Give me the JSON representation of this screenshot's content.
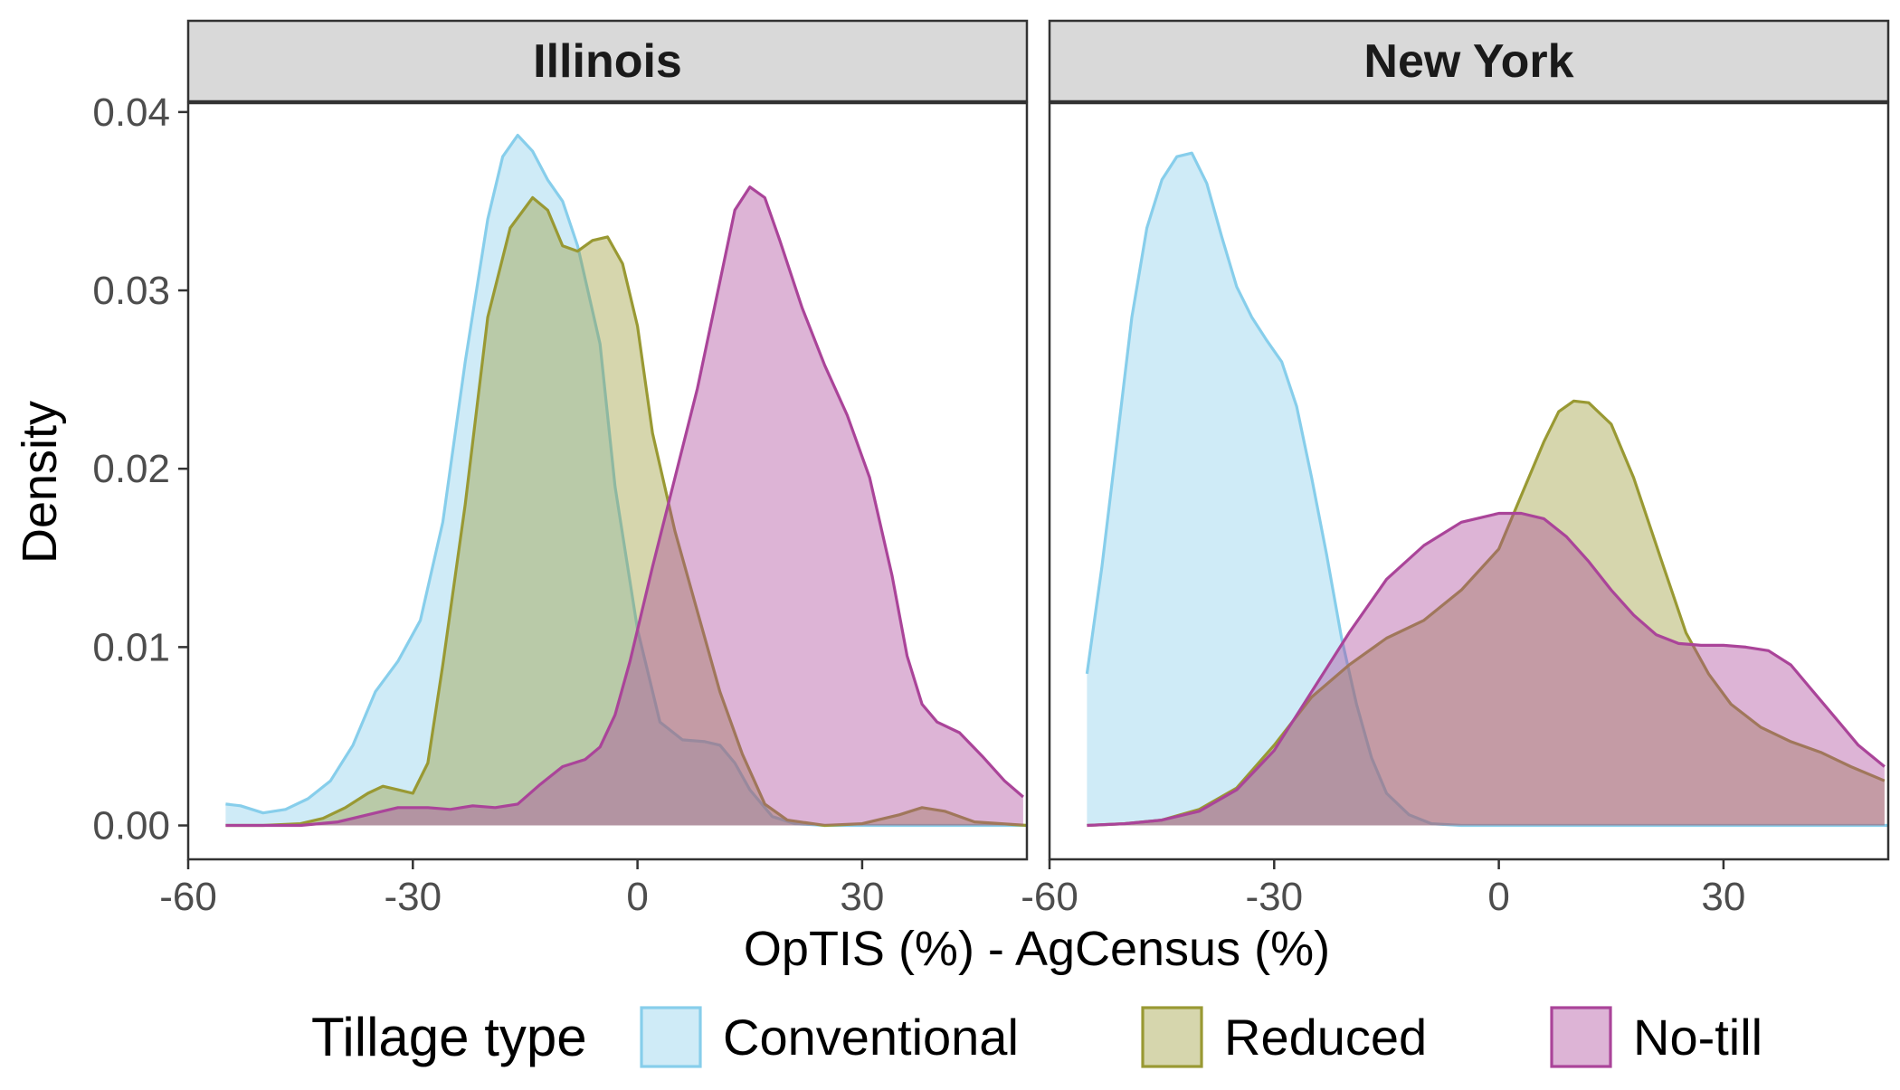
{
  "chart_data": {
    "type": "area",
    "subtype": "density",
    "ylabel": "Density",
    "xlabel": "OpTIS (%) - AgCensus (%)",
    "xlim": [
      -60,
      52
    ],
    "ylim": [
      -0.0019,
      0.0405
    ],
    "x_ticks": [
      -60,
      -30,
      0,
      30
    ],
    "x_tick_labels": [
      "-60",
      "-30",
      "0",
      "30"
    ],
    "y_ticks": [
      0,
      0.01,
      0.02,
      0.03,
      0.04
    ],
    "y_tick_labels": [
      "0.00",
      "0.01",
      "0.02",
      "0.03",
      "0.04"
    ],
    "grid": false,
    "legend": {
      "title": "Tillage type",
      "position": "bottom",
      "items": [
        {
          "label": "Conventional",
          "color": "#87CEEB"
        },
        {
          "label": "Reduced",
          "color": "#999933"
        },
        {
          "label": "No-till",
          "color": "#AA4499"
        }
      ]
    },
    "fill_opacity": 0.4,
    "panels": [
      {
        "title": "Illinois",
        "series": [
          {
            "name": "Conventional",
            "color": "#87CEEB",
            "points": [
              [
                -55,
                0.0012
              ],
              [
                -53,
                0.0011
              ],
              [
                -50,
                0.0007
              ],
              [
                -47,
                0.0009
              ],
              [
                -44,
                0.0015
              ],
              [
                -41,
                0.0025
              ],
              [
                -38,
                0.0045
              ],
              [
                -35,
                0.0075
              ],
              [
                -32,
                0.0092
              ],
              [
                -29,
                0.0115
              ],
              [
                -26,
                0.017
              ],
              [
                -23,
                0.026
              ],
              [
                -20,
                0.034
              ],
              [
                -18,
                0.0375
              ],
              [
                -16,
                0.0387
              ],
              [
                -14,
                0.0378
              ],
              [
                -12,
                0.0362
              ],
              [
                -10,
                0.035
              ],
              [
                -8,
                0.0325
              ],
              [
                -5,
                0.027
              ],
              [
                -3,
                0.019
              ],
              [
                0,
                0.011
              ],
              [
                3,
                0.0058
              ],
              [
                6,
                0.0048
              ],
              [
                9,
                0.0047
              ],
              [
                11,
                0.0045
              ],
              [
                13,
                0.0035
              ],
              [
                15,
                0.002
              ],
              [
                18,
                0.0005
              ],
              [
                21,
                0.0001
              ],
              [
                25,
                0
              ],
              [
                35,
                0
              ],
              [
                45,
                0
              ],
              [
                52,
                0
              ]
            ]
          },
          {
            "name": "Reduced",
            "color": "#999933",
            "points": [
              [
                -55,
                0
              ],
              [
                -50,
                0
              ],
              [
                -45,
                0.0001
              ],
              [
                -42,
                0.0004
              ],
              [
                -39,
                0.001
              ],
              [
                -36,
                0.0018
              ],
              [
                -34,
                0.0022
              ],
              [
                -32,
                0.002
              ],
              [
                -30,
                0.0018
              ],
              [
                -28,
                0.0035
              ],
              [
                -26,
                0.009
              ],
              [
                -23,
                0.018
              ],
              [
                -20,
                0.0285
              ],
              [
                -17,
                0.0335
              ],
              [
                -14,
                0.0352
              ],
              [
                -12,
                0.0345
              ],
              [
                -10,
                0.0325
              ],
              [
                -8,
                0.0322
              ],
              [
                -6,
                0.0328
              ],
              [
                -4,
                0.033
              ],
              [
                -2,
                0.0315
              ],
              [
                0,
                0.028
              ],
              [
                2,
                0.022
              ],
              [
                5,
                0.0165
              ],
              [
                8,
                0.012
              ],
              [
                11,
                0.0075
              ],
              [
                14,
                0.004
              ],
              [
                17,
                0.0012
              ],
              [
                20,
                0.0003
              ],
              [
                25,
                0
              ],
              [
                30,
                0.0001
              ],
              [
                35,
                0.0006
              ],
              [
                38,
                0.001
              ],
              [
                41,
                0.0008
              ],
              [
                45,
                0.0002
              ],
              [
                52,
                0
              ]
            ]
          },
          {
            "name": "No-till",
            "color": "#AA4499",
            "points": [
              [
                -55,
                0
              ],
              [
                -45,
                0
              ],
              [
                -40,
                0.0002
              ],
              [
                -36,
                0.0006
              ],
              [
                -32,
                0.001
              ],
              [
                -28,
                0.001
              ],
              [
                -25,
                0.0009
              ],
              [
                -22,
                0.0011
              ],
              [
                -19,
                0.001
              ],
              [
                -16,
                0.0012
              ],
              [
                -13,
                0.0023
              ],
              [
                -10,
                0.0033
              ],
              [
                -7,
                0.0037
              ],
              [
                -5,
                0.0044
              ],
              [
                -3,
                0.0062
              ],
              [
                -1,
                0.0092
              ],
              [
                2,
                0.0145
              ],
              [
                5,
                0.0195
              ],
              [
                8,
                0.0245
              ],
              [
                11,
                0.0305
              ],
              [
                13,
                0.0345
              ],
              [
                15,
                0.0358
              ],
              [
                17,
                0.0352
              ],
              [
                19,
                0.0328
              ],
              [
                22,
                0.029
              ],
              [
                25,
                0.0258
              ],
              [
                28,
                0.023
              ],
              [
                31,
                0.0195
              ],
              [
                34,
                0.014
              ],
              [
                36,
                0.0095
              ],
              [
                38,
                0.0068
              ],
              [
                40,
                0.0058
              ],
              [
                43,
                0.0052
              ],
              [
                46,
                0.0039
              ],
              [
                49,
                0.0025
              ],
              [
                51.5,
                0.0016
              ]
            ]
          }
        ]
      },
      {
        "title": "New York",
        "series": [
          {
            "name": "Conventional",
            "color": "#87CEEB",
            "points": [
              [
                -55,
                0.0085
              ],
              [
                -53,
                0.0145
              ],
              [
                -51,
                0.0215
              ],
              [
                -49,
                0.0285
              ],
              [
                -47,
                0.0335
              ],
              [
                -45,
                0.0362
              ],
              [
                -43,
                0.0375
              ],
              [
                -41,
                0.0377
              ],
              [
                -39,
                0.036
              ],
              [
                -37,
                0.033
              ],
              [
                -35,
                0.0302
              ],
              [
                -33,
                0.0285
              ],
              [
                -31,
                0.0272
              ],
              [
                -29,
                0.026
              ],
              [
                -27,
                0.0235
              ],
              [
                -25,
                0.0195
              ],
              [
                -23,
                0.0152
              ],
              [
                -21,
                0.0105
              ],
              [
                -19,
                0.0068
              ],
              [
                -17,
                0.0038
              ],
              [
                -15,
                0.0018
              ],
              [
                -12,
                0.0006
              ],
              [
                -9,
                0.0001
              ],
              [
                -5,
                0
              ],
              [
                10,
                0
              ],
              [
                30,
                0
              ],
              [
                52,
                0
              ]
            ]
          },
          {
            "name": "Reduced",
            "color": "#999933",
            "points": [
              [
                -55,
                0
              ],
              [
                -50,
                0.0001
              ],
              [
                -45,
                0.0003
              ],
              [
                -40,
                0.0009
              ],
              [
                -35,
                0.0021
              ],
              [
                -30,
                0.0045
              ],
              [
                -25,
                0.0072
              ],
              [
                -20,
                0.009
              ],
              [
                -15,
                0.0105
              ],
              [
                -10,
                0.0115
              ],
              [
                -5,
                0.0132
              ],
              [
                0,
                0.0155
              ],
              [
                3,
                0.0185
              ],
              [
                6,
                0.0215
              ],
              [
                8,
                0.0232
              ],
              [
                10,
                0.0238
              ],
              [
                12,
                0.0237
              ],
              [
                15,
                0.0225
              ],
              [
                18,
                0.0195
              ],
              [
                22,
                0.0145
              ],
              [
                25,
                0.0108
              ],
              [
                28,
                0.0085
              ],
              [
                31,
                0.0068
              ],
              [
                35,
                0.0055
              ],
              [
                39,
                0.0047
              ],
              [
                43,
                0.0041
              ],
              [
                47,
                0.0033
              ],
              [
                51.5,
                0.0025
              ]
            ]
          },
          {
            "name": "No-till",
            "color": "#AA4499",
            "points": [
              [
                -55,
                0
              ],
              [
                -50,
                0.0001
              ],
              [
                -45,
                0.0003
              ],
              [
                -40,
                0.0008
              ],
              [
                -35,
                0.002
              ],
              [
                -30,
                0.0042
              ],
              [
                -25,
                0.0075
              ],
              [
                -20,
                0.0108
              ],
              [
                -15,
                0.0138
              ],
              [
                -10,
                0.0157
              ],
              [
                -5,
                0.017
              ],
              [
                0,
                0.0175
              ],
              [
                3,
                0.0175
              ],
              [
                6,
                0.0172
              ],
              [
                9,
                0.0162
              ],
              [
                12,
                0.0148
              ],
              [
                15,
                0.0132
              ],
              [
                18,
                0.0118
              ],
              [
                21,
                0.0107
              ],
              [
                24,
                0.0102
              ],
              [
                27,
                0.0101
              ],
              [
                30,
                0.0101
              ],
              [
                33,
                0.01
              ],
              [
                36,
                0.0098
              ],
              [
                39,
                0.009
              ],
              [
                42,
                0.0075
              ],
              [
                45,
                0.006
              ],
              [
                48,
                0.0045
              ],
              [
                51.5,
                0.0033
              ]
            ]
          }
        ]
      }
    ]
  }
}
